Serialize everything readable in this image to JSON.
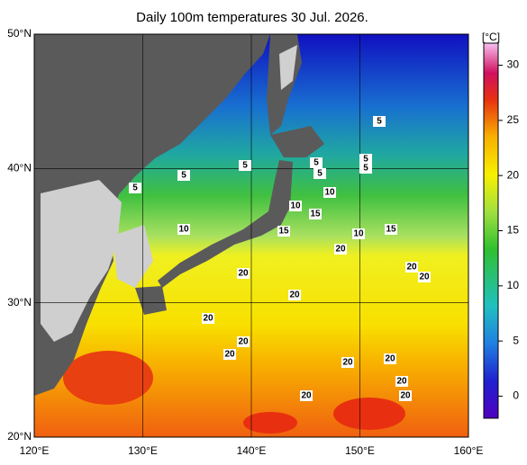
{
  "title": "Daily 100m temperatures 30 Jul. 2026.",
  "map": {
    "lonlim": [
      120,
      160
    ],
    "latlim": [
      20,
      50
    ],
    "lon_ticks": [
      {
        "value": 120,
        "label": "120°E"
      },
      {
        "value": 130,
        "label": "130°E"
      },
      {
        "value": 140,
        "label": "140°E"
      },
      {
        "value": 150,
        "label": "150°E"
      },
      {
        "value": 160,
        "label": "160°E"
      }
    ],
    "lat_ticks": [
      {
        "value": 20,
        "label": "20°N"
      },
      {
        "value": 30,
        "label": "30°N"
      },
      {
        "value": 40,
        "label": "40°N"
      },
      {
        "value": 50,
        "label": "50°N"
      }
    ]
  },
  "colorbar": {
    "unit": "[°C]",
    "lim": [
      -2,
      32
    ],
    "ticks": [
      0,
      5,
      10,
      15,
      20,
      25,
      30
    ]
  },
  "contour_labels": [
    5,
    5,
    5,
    5,
    5,
    5,
    5,
    5,
    10,
    10,
    15,
    10,
    15,
    20,
    10,
    15,
    20,
    20,
    20,
    20,
    20,
    20,
    20,
    20,
    20,
    20,
    20,
    20
  ]
}
